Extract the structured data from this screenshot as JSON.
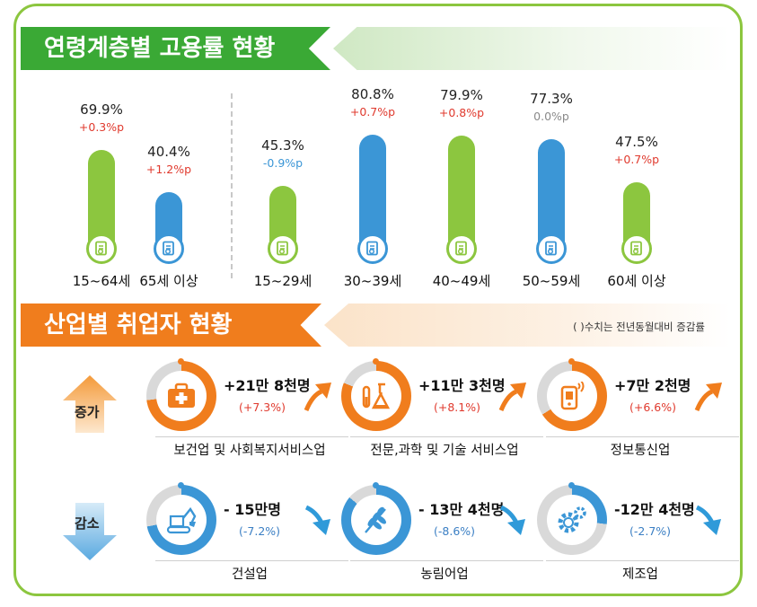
{
  "section1": {
    "title": "연령계층별 고용률 현황"
  },
  "section2": {
    "title": "산업별 취업자 현황",
    "note": "( )수치는 전년동월대비 증감률"
  },
  "colors": {
    "green": "#8cc63f",
    "blue": "#3b96d6",
    "orange": "#f07d1d",
    "red": "#e03a2e",
    "gray": "#8a8a8a"
  },
  "chart_data": [
    {
      "type": "bar",
      "categories": [
        "15~64세",
        "65세 이상",
        "15~29세",
        "30~39세",
        "40~49세",
        "50~59세",
        "60세 이상"
      ],
      "values": [
        69.9,
        40.4,
        45.3,
        80.8,
        79.9,
        77.3,
        47.5
      ],
      "value_labels": [
        "69.9%",
        "40.4%",
        "45.3%",
        "80.8%",
        "79.9%",
        "77.3%",
        "47.5%"
      ],
      "change_labels": [
        "+0.3%p",
        "+1.2%p",
        "-0.9%p",
        "+0.7%p",
        "+0.8%p",
        "0.0%p",
        "+0.7%p"
      ],
      "change_values": [
        0.3,
        1.2,
        -0.9,
        0.7,
        0.8,
        0.0,
        0.7
      ],
      "bar_colors": [
        "#8cc63f",
        "#3b96d6",
        "#8cc63f",
        "#3b96d6",
        "#8cc63f",
        "#3b96d6",
        "#8cc63f"
      ],
      "change_colors": [
        "#e03a2e",
        "#e03a2e",
        "#3b96d6",
        "#e03a2e",
        "#e03a2e",
        "#8a8a8a",
        "#e03a2e"
      ],
      "ylim": [
        0,
        100
      ]
    },
    {
      "type": "table",
      "groups": [
        {
          "label": "증가",
          "direction": "up",
          "color": "#f07d1d",
          "items": [
            {
              "name": "보건업 및 사회복지서비스업",
              "change": "+21만 8천명",
              "pct": "(+7.3%)",
              "pct_value": 7.3,
              "icon": "medical-kit-icon"
            },
            {
              "name": "전문,과학 및 기술 서비스업",
              "change": "+11만 3천명",
              "pct": "(+8.1%)",
              "pct_value": 8.1,
              "icon": "lab-flask-icon"
            },
            {
              "name": "정보통신업",
              "change": "+7만 2천명",
              "pct": "(+6.6%)",
              "pct_value": 6.6,
              "icon": "phone-signal-icon"
            }
          ]
        },
        {
          "label": "감소",
          "direction": "down",
          "color": "#3b96d6",
          "items": [
            {
              "name": "건설업",
              "change": "- 15만명",
              "pct": "(-7.2%)",
              "pct_value": -7.2,
              "icon": "excavator-icon"
            },
            {
              "name": "농림어업",
              "change": "- 13만 4천명",
              "pct": "(-8.6%)",
              "pct_value": -8.6,
              "icon": "wheat-icon"
            },
            {
              "name": "제조업",
              "change": "-12만 4천명",
              "pct": "(-2.7%)",
              "pct_value": -2.7,
              "icon": "gears-icon"
            }
          ]
        }
      ]
    }
  ]
}
